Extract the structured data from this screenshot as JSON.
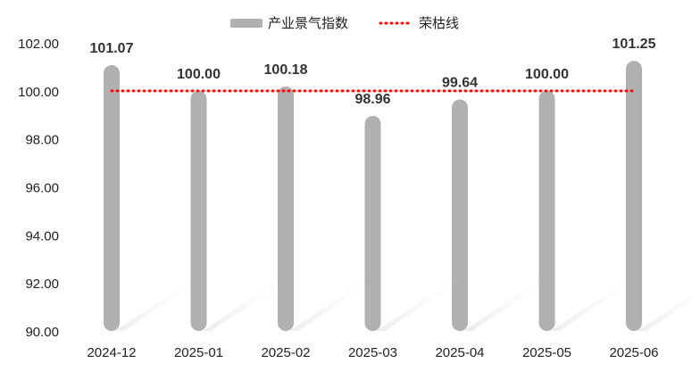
{
  "chart_data": {
    "type": "bar",
    "categories": [
      "2024-12",
      "2025-01",
      "2025-02",
      "2025-03",
      "2025-04",
      "2025-05",
      "2025-06"
    ],
    "series": [
      {
        "name": "产业景气指数",
        "values": [
          101.07,
          100.0,
          100.18,
          98.96,
          99.64,
          100.0,
          101.25
        ],
        "data_labels": [
          "101.07",
          "100.00",
          "100.18",
          "98.96",
          "99.64",
          "100.00",
          "101.25"
        ],
        "color": "#b0b0b0"
      }
    ],
    "reference_line": {
      "name": "荣枯线",
      "value": 100,
      "color": "#ff0000",
      "style": "dotted"
    },
    "y_ticks": [
      "90.00",
      "92.00",
      "94.00",
      "96.00",
      "98.00",
      "100.00",
      "102.00"
    ],
    "ylim": [
      90,
      102
    ],
    "legend_position": "top-center",
    "grid": false
  }
}
